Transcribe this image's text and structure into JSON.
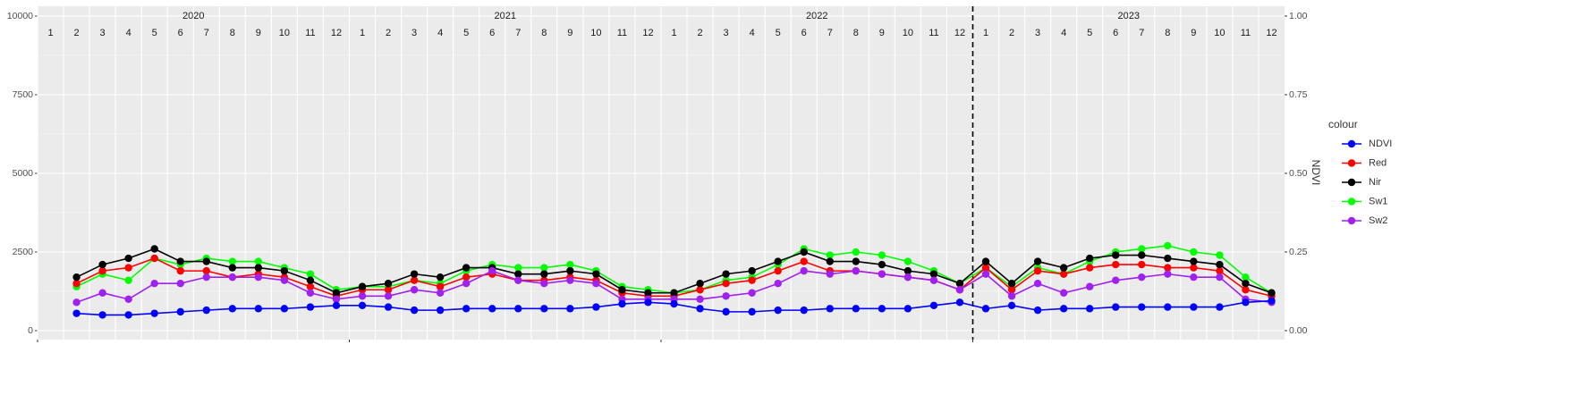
{
  "chart_data": {
    "type": "line",
    "x": [
      "2020-02",
      "2020-03",
      "2020-04",
      "2020-05",
      "2020-06",
      "2020-07",
      "2020-08",
      "2020-09",
      "2020-10",
      "2020-11",
      "2020-12",
      "2021-01",
      "2021-02",
      "2021-03",
      "2021-04",
      "2021-05",
      "2021-06",
      "2021-07",
      "2021-08",
      "2021-09",
      "2021-10",
      "2021-11",
      "2021-12",
      "2022-01",
      "2022-02",
      "2022-03",
      "2022-04",
      "2022-05",
      "2022-06",
      "2022-07",
      "2022-08",
      "2022-09",
      "2022-10",
      "2022-11",
      "2022-12",
      "2023-01",
      "2023-02",
      "2023-03",
      "2023-04",
      "2023-05",
      "2023-06",
      "2023-07",
      "2023-08",
      "2023-09",
      "2023-10",
      "2023-11",
      "2023-12"
    ],
    "xlim": [
      "2020-01",
      "2024-01"
    ],
    "year_labels": [
      "2020",
      "2021",
      "2022",
      "2023"
    ],
    "month_labels": [
      "1",
      "2",
      "3",
      "4",
      "5",
      "6",
      "7",
      "8",
      "9",
      "10",
      "11",
      "12"
    ],
    "vline_x": "2023-01",
    "ylim": [
      -284,
      10312
    ],
    "yticks": [
      0,
      2500,
      5000,
      7500,
      10000
    ],
    "y2lim": [
      -0.0284,
      1.0312
    ],
    "y2ticks": [
      {
        "value": 0,
        "label": "0.00"
      },
      {
        "value": 0.25,
        "label": "0.25"
      },
      {
        "value": 0.5,
        "label": "0.50"
      },
      {
        "value": 0.75,
        "label": "0.75"
      },
      {
        "value": 1,
        "label": "1.00"
      }
    ],
    "y2_label": "NDVI",
    "legend_title": "colour",
    "grid": true,
    "series": [
      {
        "name": "NDVI",
        "color": "#0000ff",
        "axis": "y2",
        "values": [
          0.055,
          0.05,
          0.05,
          0.055,
          0.06,
          0.065,
          0.07,
          0.07,
          0.07,
          0.075,
          0.08,
          0.08,
          0.075,
          0.065,
          0.065,
          0.07,
          0.07,
          0.07,
          0.07,
          0.07,
          0.075,
          0.085,
          0.09,
          0.085,
          0.07,
          0.06,
          0.06,
          0.065,
          0.065,
          0.07,
          0.07,
          0.07,
          0.07,
          0.08,
          0.09,
          0.07,
          0.08,
          0.065,
          0.07,
          0.07,
          0.075,
          0.075,
          0.075,
          0.075,
          0.075,
          0.09,
          0.095
        ]
      },
      {
        "name": "Red",
        "color": "#ff0000",
        "values": [
          1500,
          1900,
          2000,
          2300,
          1900,
          1900,
          1700,
          1800,
          1700,
          1400,
          1100,
          1300,
          1300,
          1600,
          1400,
          1700,
          1800,
          1600,
          1600,
          1700,
          1600,
          1200,
          1100,
          1100,
          1300,
          1500,
          1600,
          1900,
          2200,
          1900,
          1900,
          1800,
          1700,
          1600,
          1300,
          2000,
          1300,
          1900,
          1800,
          2000,
          2100,
          2100,
          2000,
          2000,
          1900,
          1300,
          1100
        ]
      },
      {
        "name": "Nir",
        "color": "#000000",
        "values": [
          1700,
          2100,
          2300,
          2600,
          2200,
          2200,
          2000,
          2000,
          1900,
          1600,
          1200,
          1400,
          1500,
          1800,
          1700,
          2000,
          2000,
          1800,
          1800,
          1900,
          1800,
          1300,
          1200,
          1200,
          1500,
          1800,
          1900,
          2200,
          2500,
          2200,
          2200,
          2100,
          1900,
          1800,
          1500,
          2200,
          1500,
          2200,
          2000,
          2300,
          2400,
          2400,
          2300,
          2200,
          2100,
          1500,
          1200
        ]
      },
      {
        "name": "Sw1",
        "color": "#00ff00",
        "values": [
          1400,
          1800,
          1600,
          2300,
          2100,
          2300,
          2200,
          2200,
          2000,
          1800,
          1300,
          1400,
          1400,
          1600,
          1500,
          1900,
          2100,
          2000,
          2000,
          2100,
          1900,
          1400,
          1300,
          1200,
          1300,
          1600,
          1700,
          2100,
          2600,
          2400,
          2500,
          2400,
          2200,
          1900,
          1500,
          2000,
          1400,
          2000,
          1800,
          2200,
          2500,
          2600,
          2700,
          2500,
          2400,
          1700,
          1200
        ]
      },
      {
        "name": "Sw2",
        "color": "#a020f0",
        "values": [
          900,
          1200,
          1000,
          1500,
          1500,
          1700,
          1700,
          1700,
          1600,
          1200,
          1000,
          1100,
          1100,
          1300,
          1200,
          1500,
          1900,
          1600,
          1500,
          1600,
          1500,
          1000,
          1000,
          1000,
          1000,
          1100,
          1200,
          1500,
          1900,
          1800,
          1900,
          1800,
          1700,
          1600,
          1300,
          1800,
          1100,
          1500,
          1200,
          1400,
          1600,
          1700,
          1800,
          1700,
          1700,
          1000,
          900
        ]
      }
    ]
  }
}
